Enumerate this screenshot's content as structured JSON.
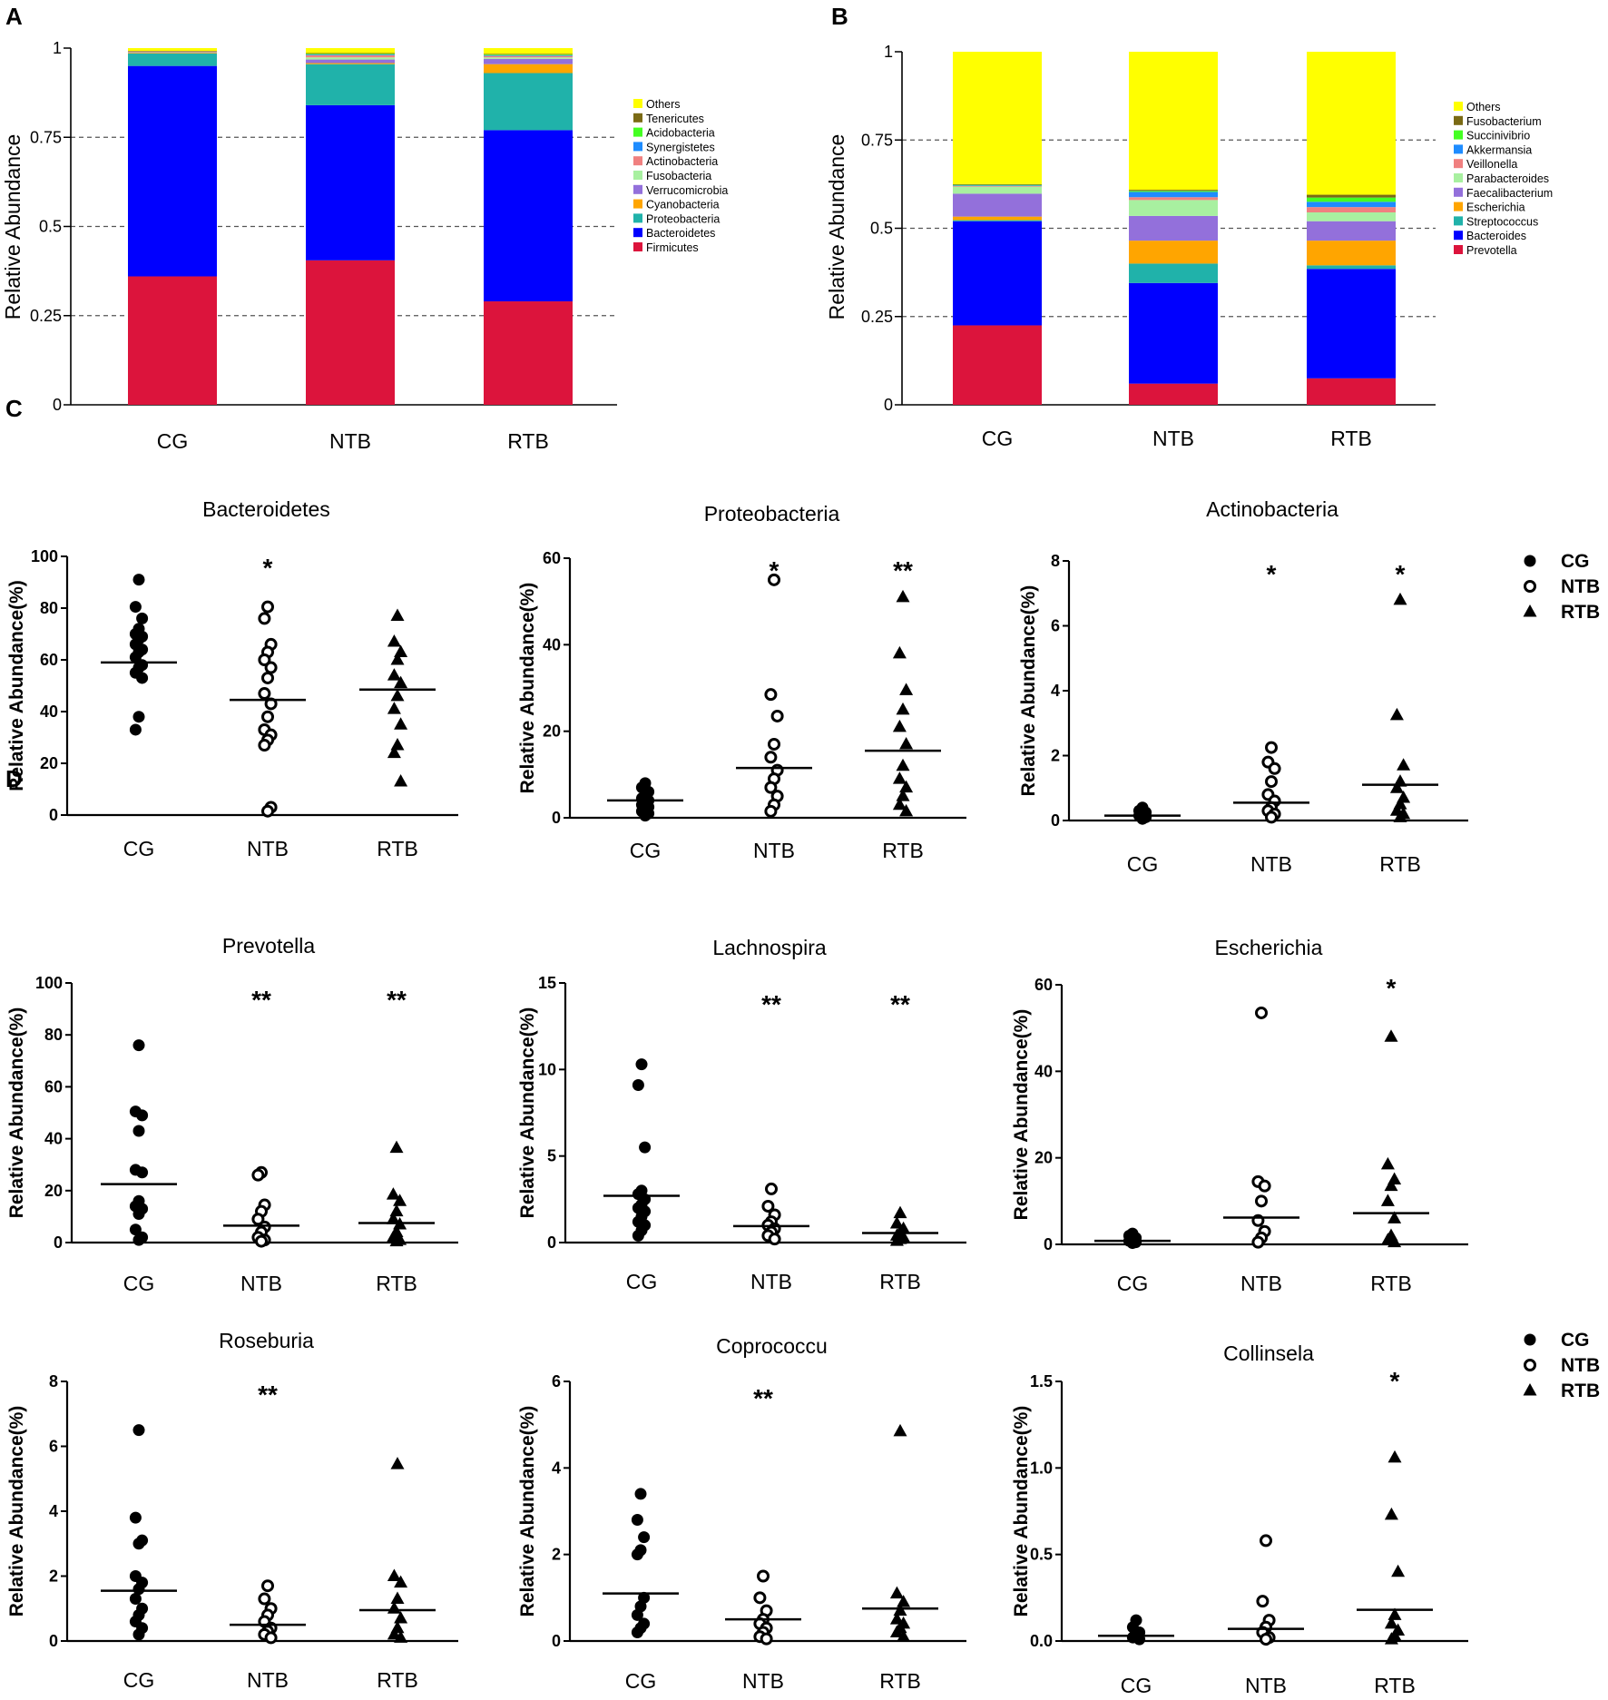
{
  "panel_letters": [
    "A",
    "B",
    "C",
    "D"
  ],
  "colors": {
    "phylum": {
      "Others": "#ffff00",
      "Tenericutes": "#7a6a14",
      "Acidobacteria": "#44ff22",
      "Synergistetes": "#1e8cff",
      "Actinobacteria": "#f08080",
      "Fusobacteria": "#a8f0a0",
      "Verrucomicrobia": "#9370db",
      "Cyanobacteria": "#ffa500",
      "Proteobacteria": "#20b2aa",
      "Bacteroidetes": "#0000ff",
      "Firmicutes": "#dc143c"
    },
    "genus": {
      "Others": "#ffff00",
      "Fusobacterium": "#7a6a14",
      "Succinivibrio": "#44ff22",
      "Akkermansia": "#1e8cff",
      "Veillonella": "#f08080",
      "Parabacteroides": "#a8f0a0",
      "Faecalibacterium": "#9370db",
      "Escherichia": "#ffa500",
      "Streptococcus": "#20b2aa",
      "Bacteroides": "#0000ff",
      "Prevotella": "#dc143c"
    }
  },
  "chart_data": [
    {
      "id": "A",
      "type": "bar",
      "stacked": true,
      "ylabel": "Relative Abundance",
      "ylim": [
        0,
        1
      ],
      "yticks": [
        "0",
        "0.25",
        "0.5",
        "0.75",
        "1"
      ],
      "grid": "dashed at 0.25, 0.5, 0.75",
      "legend_position": "right",
      "categories": [
        "CG",
        "NTB",
        "RTB"
      ],
      "series": [
        {
          "name": "Firmicutes",
          "values": [
            0.36,
            0.405,
            0.29
          ]
        },
        {
          "name": "Bacteroidetes",
          "values": [
            0.59,
            0.435,
            0.48
          ]
        },
        {
          "name": "Proteobacteria",
          "values": [
            0.035,
            0.115,
            0.16
          ]
        },
        {
          "name": "Cyanobacteria",
          "values": [
            0.002,
            0.003,
            0.025
          ]
        },
        {
          "name": "Verrucomicrobia",
          "values": [
            0.002,
            0.01,
            0.015
          ]
        },
        {
          "name": "Fusobacteria",
          "values": [
            0.001,
            0.006,
            0.004
          ]
        },
        {
          "name": "Actinobacteria",
          "values": [
            0.001,
            0.006,
            0.004
          ]
        },
        {
          "name": "Synergistetes",
          "values": [
            0,
            0.002,
            0.002
          ]
        },
        {
          "name": "Acidobacteria",
          "values": [
            0,
            0.002,
            0.002
          ]
        },
        {
          "name": "Tenericutes",
          "values": [
            0.001,
            0.002,
            0.002
          ]
        },
        {
          "name": "Others",
          "values": [
            0.008,
            0.014,
            0.016
          ]
        }
      ]
    },
    {
      "id": "B",
      "type": "bar",
      "stacked": true,
      "ylabel": "Relative Abundance",
      "ylim": [
        0,
        1
      ],
      "yticks": [
        "0",
        "0.25",
        "0.5",
        "0.75",
        "1"
      ],
      "grid": "dashed at 0.25, 0.5, 0.75",
      "legend_position": "right",
      "categories": [
        "CG",
        "NTB",
        "RTB"
      ],
      "series": [
        {
          "name": "Prevotella",
          "values": [
            0.225,
            0.06,
            0.075
          ]
        },
        {
          "name": "Bacteroides",
          "values": [
            0.295,
            0.285,
            0.31
          ]
        },
        {
          "name": "Streptococcus",
          "values": [
            0.003,
            0.055,
            0.01
          ]
        },
        {
          "name": "Escherichia",
          "values": [
            0.01,
            0.065,
            0.07
          ]
        },
        {
          "name": "Faecalibacterium",
          "values": [
            0.065,
            0.07,
            0.055
          ]
        },
        {
          "name": "Parabacteroides",
          "values": [
            0.02,
            0.045,
            0.025
          ]
        },
        {
          "name": "Veillonella",
          "values": [
            0.002,
            0.008,
            0.015
          ]
        },
        {
          "name": "Akkermansia",
          "values": [
            0.002,
            0.015,
            0.015
          ]
        },
        {
          "name": "Succinivibrio",
          "values": [
            0.001,
            0.003,
            0.012
          ]
        },
        {
          "name": "Fusobacterium",
          "values": [
            0.002,
            0.003,
            0.008
          ]
        },
        {
          "name": "Others",
          "values": [
            0.375,
            0.391,
            0.405
          ]
        }
      ]
    },
    {
      "id": "C1",
      "type": "scatter",
      "title": "Bacteroidetes",
      "ylabel": "Relative Abundance(%)",
      "ylim": [
        0,
        100
      ],
      "yticks": [
        "0",
        "20",
        "40",
        "60",
        "80",
        "100"
      ],
      "categories": [
        "CG",
        "NTB",
        "RTB"
      ],
      "groups": [
        {
          "name": "CG",
          "marker": "filled-circle",
          "mean": 59,
          "sig": "",
          "values": [
            91,
            80.5,
            76,
            72,
            70,
            69,
            68,
            66,
            64,
            63,
            61,
            58,
            57,
            55,
            53,
            38,
            33
          ]
        },
        {
          "name": "NTB",
          "marker": "open-circle",
          "mean": 44.5,
          "sig": "*",
          "values": [
            80.5,
            76,
            66,
            63,
            60,
            57,
            53,
            47,
            43,
            38,
            33,
            31,
            29,
            27,
            3,
            1.5
          ]
        },
        {
          "name": "RTB",
          "marker": "triangle",
          "mean": 48.5,
          "sig": "",
          "values": [
            77,
            67,
            63,
            60,
            54,
            51,
            46,
            41,
            35,
            27,
            24,
            13
          ]
        }
      ]
    },
    {
      "id": "C2",
      "type": "scatter",
      "title": "Proteobacteria",
      "ylabel": "Relative Abundance(%)",
      "ylim": [
        0,
        60
      ],
      "yticks": [
        "0",
        "20",
        "40",
        "60"
      ],
      "categories": [
        "CG",
        "NTB",
        "RTB"
      ],
      "groups": [
        {
          "name": "CG",
          "marker": "filled-circle",
          "mean": 4,
          "sig": "",
          "values": [
            8,
            7,
            6,
            5,
            4.5,
            4,
            3.5,
            3,
            2.5,
            2,
            1.5,
            1,
            0.5
          ]
        },
        {
          "name": "NTB",
          "marker": "open-circle",
          "mean": 11.5,
          "sig": "*",
          "values": [
            55,
            28.5,
            23.5,
            17,
            14,
            11,
            9,
            7,
            5,
            3,
            1.5
          ]
        },
        {
          "name": "RTB",
          "marker": "triangle",
          "mean": 15.5,
          "sig": "**",
          "values": [
            51,
            38,
            29.5,
            25,
            21,
            17,
            12,
            9,
            7,
            5,
            3,
            1.5
          ]
        }
      ]
    },
    {
      "id": "C3",
      "type": "scatter",
      "title": "Actinobacteria",
      "ylabel": "Relative Abundance(%)",
      "ylim": [
        0,
        8
      ],
      "yticks": [
        "0",
        "2",
        "4",
        "6",
        "8"
      ],
      "categories": [
        "CG",
        "NTB",
        "RTB"
      ],
      "groups": [
        {
          "name": "CG",
          "marker": "filled-circle",
          "mean": 0.15,
          "sig": "",
          "values": [
            0.4,
            0.3,
            0.25,
            0.2,
            0.15,
            0.1,
            0.05
          ]
        },
        {
          "name": "NTB",
          "marker": "open-circle",
          "mean": 0.55,
          "sig": "*",
          "values": [
            2.25,
            1.8,
            1.6,
            1.2,
            0.8,
            0.6,
            0.4,
            0.3,
            0.2,
            0.1
          ]
        },
        {
          "name": "RTB",
          "marker": "triangle",
          "mean": 1.1,
          "sig": "*",
          "values": [
            6.8,
            3.25,
            1.7,
            1.2,
            1,
            0.7,
            0.5,
            0.3,
            0.2,
            0.1
          ]
        }
      ]
    },
    {
      "id": "D1",
      "type": "scatter",
      "title": "Prevotella",
      "ylabel": "Relative Abundance(%)",
      "ylim": [
        0,
        100
      ],
      "yticks": [
        "0",
        "20",
        "40",
        "60",
        "80",
        "100"
      ],
      "categories": [
        "CG",
        "NTB",
        "RTB"
      ],
      "groups": [
        {
          "name": "CG",
          "marker": "filled-circle",
          "mean": 22.5,
          "sig": "",
          "values": [
            76,
            50.5,
            49,
            43,
            28,
            27,
            16,
            14,
            13,
            11,
            5,
            2,
            1
          ]
        },
        {
          "name": "NTB",
          "marker": "open-circle",
          "mean": 6.5,
          "sig": "**",
          "values": [
            27,
            26,
            14.5,
            12,
            9,
            6,
            4,
            2,
            1,
            0.5
          ]
        },
        {
          "name": "RTB",
          "marker": "triangle",
          "mean": 7.5,
          "sig": "**",
          "values": [
            36.5,
            18.5,
            16,
            12,
            9,
            7,
            4,
            2,
            1,
            0.5
          ]
        }
      ]
    },
    {
      "id": "D2",
      "type": "scatter",
      "title": "Lachnospira",
      "ylabel": "Relative Abundance(%)",
      "ylim": [
        0,
        15
      ],
      "yticks": [
        "0",
        "5",
        "10",
        "15"
      ],
      "categories": [
        "CG",
        "NTB",
        "RTB"
      ],
      "groups": [
        {
          "name": "CG",
          "marker": "filled-circle",
          "mean": 2.7,
          "sig": "",
          "values": [
            10.3,
            9.1,
            5.5,
            3,
            2.8,
            2.5,
            2.2,
            2,
            1.8,
            1.5,
            1.2,
            1,
            0.7,
            0.4
          ]
        },
        {
          "name": "NTB",
          "marker": "open-circle",
          "mean": 0.95,
          "sig": "**",
          "values": [
            3.1,
            2.1,
            1.6,
            1.2,
            1,
            0.8,
            0.6,
            0.4,
            0.2
          ]
        },
        {
          "name": "RTB",
          "marker": "triangle",
          "mean": 0.55,
          "sig": "**",
          "values": [
            1.7,
            1.1,
            0.8,
            0.6,
            0.4,
            0.3,
            0.2,
            0.1
          ]
        }
      ]
    },
    {
      "id": "D3",
      "type": "scatter",
      "title": "Escherichia",
      "ylabel": "Relative Abundance(%)",
      "ylim": [
        0,
        60
      ],
      "yticks": [
        "0",
        "20",
        "40",
        "60"
      ],
      "categories": [
        "CG",
        "NTB",
        "RTB"
      ],
      "groups": [
        {
          "name": "CG",
          "marker": "filled-circle",
          "mean": 0.8,
          "sig": "",
          "values": [
            2.5,
            2,
            1.5,
            1,
            0.8,
            0.5,
            0.3
          ]
        },
        {
          "name": "NTB",
          "marker": "open-circle",
          "mean": 6.2,
          "sig": "",
          "values": [
            53.5,
            14.5,
            13.5,
            10,
            5.5,
            3,
            1.5,
            0.5
          ]
        },
        {
          "name": "RTB",
          "marker": "triangle",
          "mean": 7.2,
          "sig": "*",
          "values": [
            48,
            18.5,
            15,
            13.5,
            10,
            6,
            2,
            1,
            0.5
          ]
        }
      ]
    },
    {
      "id": "D4",
      "type": "scatter",
      "title": "Roseburia",
      "ylabel": "Relative Abundance(%)",
      "ylim": [
        0,
        8
      ],
      "yticks": [
        "0",
        "2",
        "4",
        "6",
        "8"
      ],
      "categories": [
        "CG",
        "NTB",
        "RTB"
      ],
      "groups": [
        {
          "name": "CG",
          "marker": "filled-circle",
          "mean": 1.55,
          "sig": "",
          "values": [
            6.5,
            3.8,
            3.1,
            3,
            2,
            1.8,
            1.6,
            1.3,
            1,
            0.8,
            0.6,
            0.4,
            0.2
          ]
        },
        {
          "name": "NTB",
          "marker": "open-circle",
          "mean": 0.5,
          "sig": "**",
          "values": [
            1.7,
            1.3,
            1,
            0.8,
            0.6,
            0.4,
            0.3,
            0.2,
            0.1
          ]
        },
        {
          "name": "RTB",
          "marker": "triangle",
          "mean": 0.95,
          "sig": "",
          "values": [
            5.45,
            2,
            1.8,
            1.3,
            1,
            0.7,
            0.4,
            0.2,
            0.1
          ]
        }
      ]
    },
    {
      "id": "D5",
      "type": "scatter",
      "title": "Coprococcu",
      "ylabel": "Relative Abundance(%)",
      "ylim": [
        0,
        6
      ],
      "yticks": [
        "0",
        "2",
        "4",
        "6"
      ],
      "categories": [
        "CG",
        "NTB",
        "RTB"
      ],
      "groups": [
        {
          "name": "CG",
          "marker": "filled-circle",
          "mean": 1.1,
          "sig": "",
          "values": [
            3.4,
            2.8,
            2.4,
            2.1,
            2,
            1,
            0.8,
            0.6,
            0.4,
            0.3,
            0.2
          ]
        },
        {
          "name": "NTB",
          "marker": "open-circle",
          "mean": 0.5,
          "sig": "**",
          "values": [
            1.5,
            1,
            0.7,
            0.5,
            0.4,
            0.3,
            0.2,
            0.1,
            0.05
          ]
        },
        {
          "name": "RTB",
          "marker": "triangle",
          "mean": 0.75,
          "sig": "",
          "values": [
            4.85,
            1.1,
            0.9,
            0.7,
            0.5,
            0.4,
            0.3,
            0.2,
            0.1
          ]
        }
      ]
    },
    {
      "id": "D6",
      "type": "scatter",
      "title": "Collinsela",
      "ylabel": "Relative Abundance(%)",
      "ylim": [
        0,
        1.5
      ],
      "yticks": [
        "0.0",
        "0.5",
        "1.0",
        "1.5"
      ],
      "categories": [
        "CG",
        "NTB",
        "RTB"
      ],
      "groups": [
        {
          "name": "CG",
          "marker": "filled-circle",
          "mean": 0.03,
          "sig": "",
          "values": [
            0.12,
            0.08,
            0.05,
            0.03,
            0.02,
            0.01
          ]
        },
        {
          "name": "NTB",
          "marker": "open-circle",
          "mean": 0.07,
          "sig": "",
          "values": [
            0.58,
            0.23,
            0.12,
            0.08,
            0.05,
            0.02,
            0.01
          ]
        },
        {
          "name": "RTB",
          "marker": "triangle",
          "mean": 0.18,
          "sig": "*",
          "values": [
            1.06,
            0.73,
            0.4,
            0.15,
            0.1,
            0.06,
            0.03,
            0.01
          ]
        }
      ]
    }
  ],
  "scatter_legend": [
    {
      "name": "CG",
      "marker": "filled-circle"
    },
    {
      "name": "NTB",
      "marker": "open-circle"
    },
    {
      "name": "RTB",
      "marker": "triangle"
    }
  ]
}
